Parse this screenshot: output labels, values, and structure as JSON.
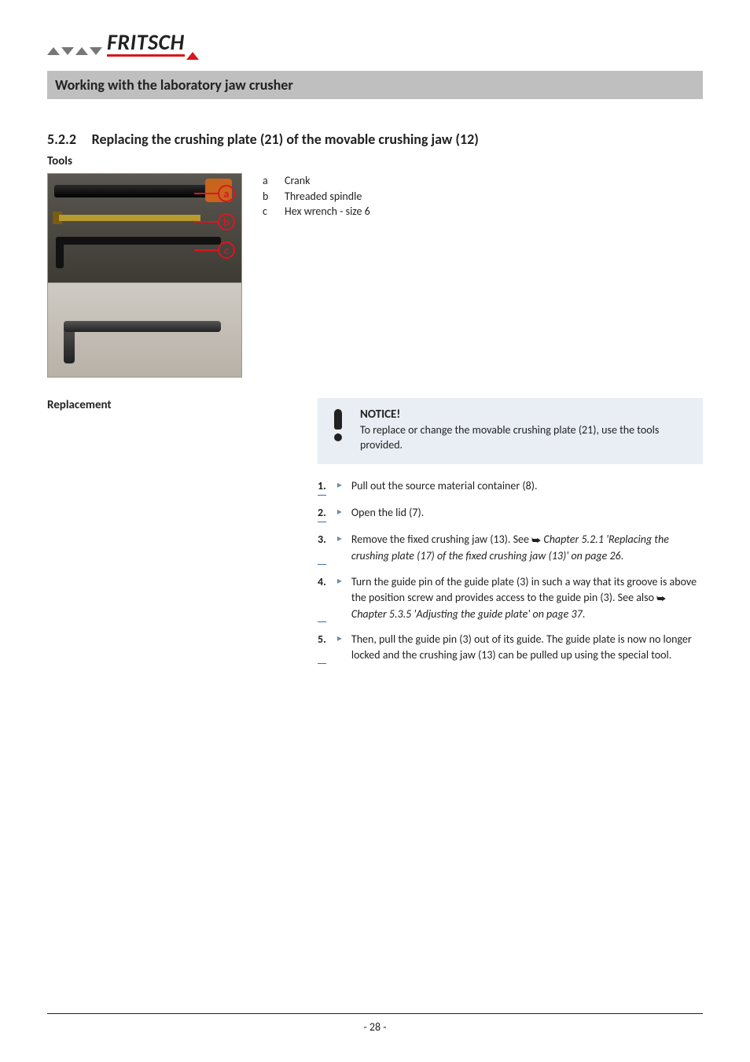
{
  "brand": {
    "name": "FRITSCH",
    "accent": "#d8171e",
    "gray": "#777777"
  },
  "section_bar": "Working with the laboratory jaw crusher",
  "heading": {
    "number": "5.2.2",
    "title": "Replacing the crushing plate (21) of the movable crushing jaw (12)"
  },
  "tools_label": "Tools",
  "tool_legend": [
    {
      "key": "a",
      "label": "Crank"
    },
    {
      "key": "b",
      "label": "Threaded spindle"
    },
    {
      "key": "c",
      "label": "Hex wrench - size 6"
    }
  ],
  "replacement_label": "Replacement",
  "notice": {
    "title": "NOTICE!",
    "text": "To replace or change the movable crushing plate (21), use the tools provided.",
    "bg": "#e8eef4"
  },
  "steps": [
    {
      "n": "1.",
      "body": "Pull out the source material container (8)."
    },
    {
      "n": "2.",
      "body": "Open the lid (7)."
    },
    {
      "n": "3.",
      "body_pre": "Remove the fixed crushing jaw (13). See ",
      "ref": "Chapter 5.2.1 'Replacing the crushing plate (17) of the fixed crushing jaw (13)' on page 26",
      "body_post": "."
    },
    {
      "n": "4.",
      "body_pre": "Turn the guide pin of the guide plate (3) in such a way that its groove is above the position screw and provides access to the guide pin (3). See also  ",
      "ref": "Chapter 5.3.5 'Adjusting the guide plate' on page 37",
      "body_post": "."
    },
    {
      "n": "5.",
      "body": "Then, pull the guide pin (3) out of its guide. The guide plate is now no longer locked and the crushing jaw (13) can be pulled up using the special tool."
    }
  ],
  "page_number": "- 28 -",
  "colors": {
    "step_underline": "#3a6ea5",
    "bar_bg": "#bfbfbf",
    "text": "#222222"
  }
}
